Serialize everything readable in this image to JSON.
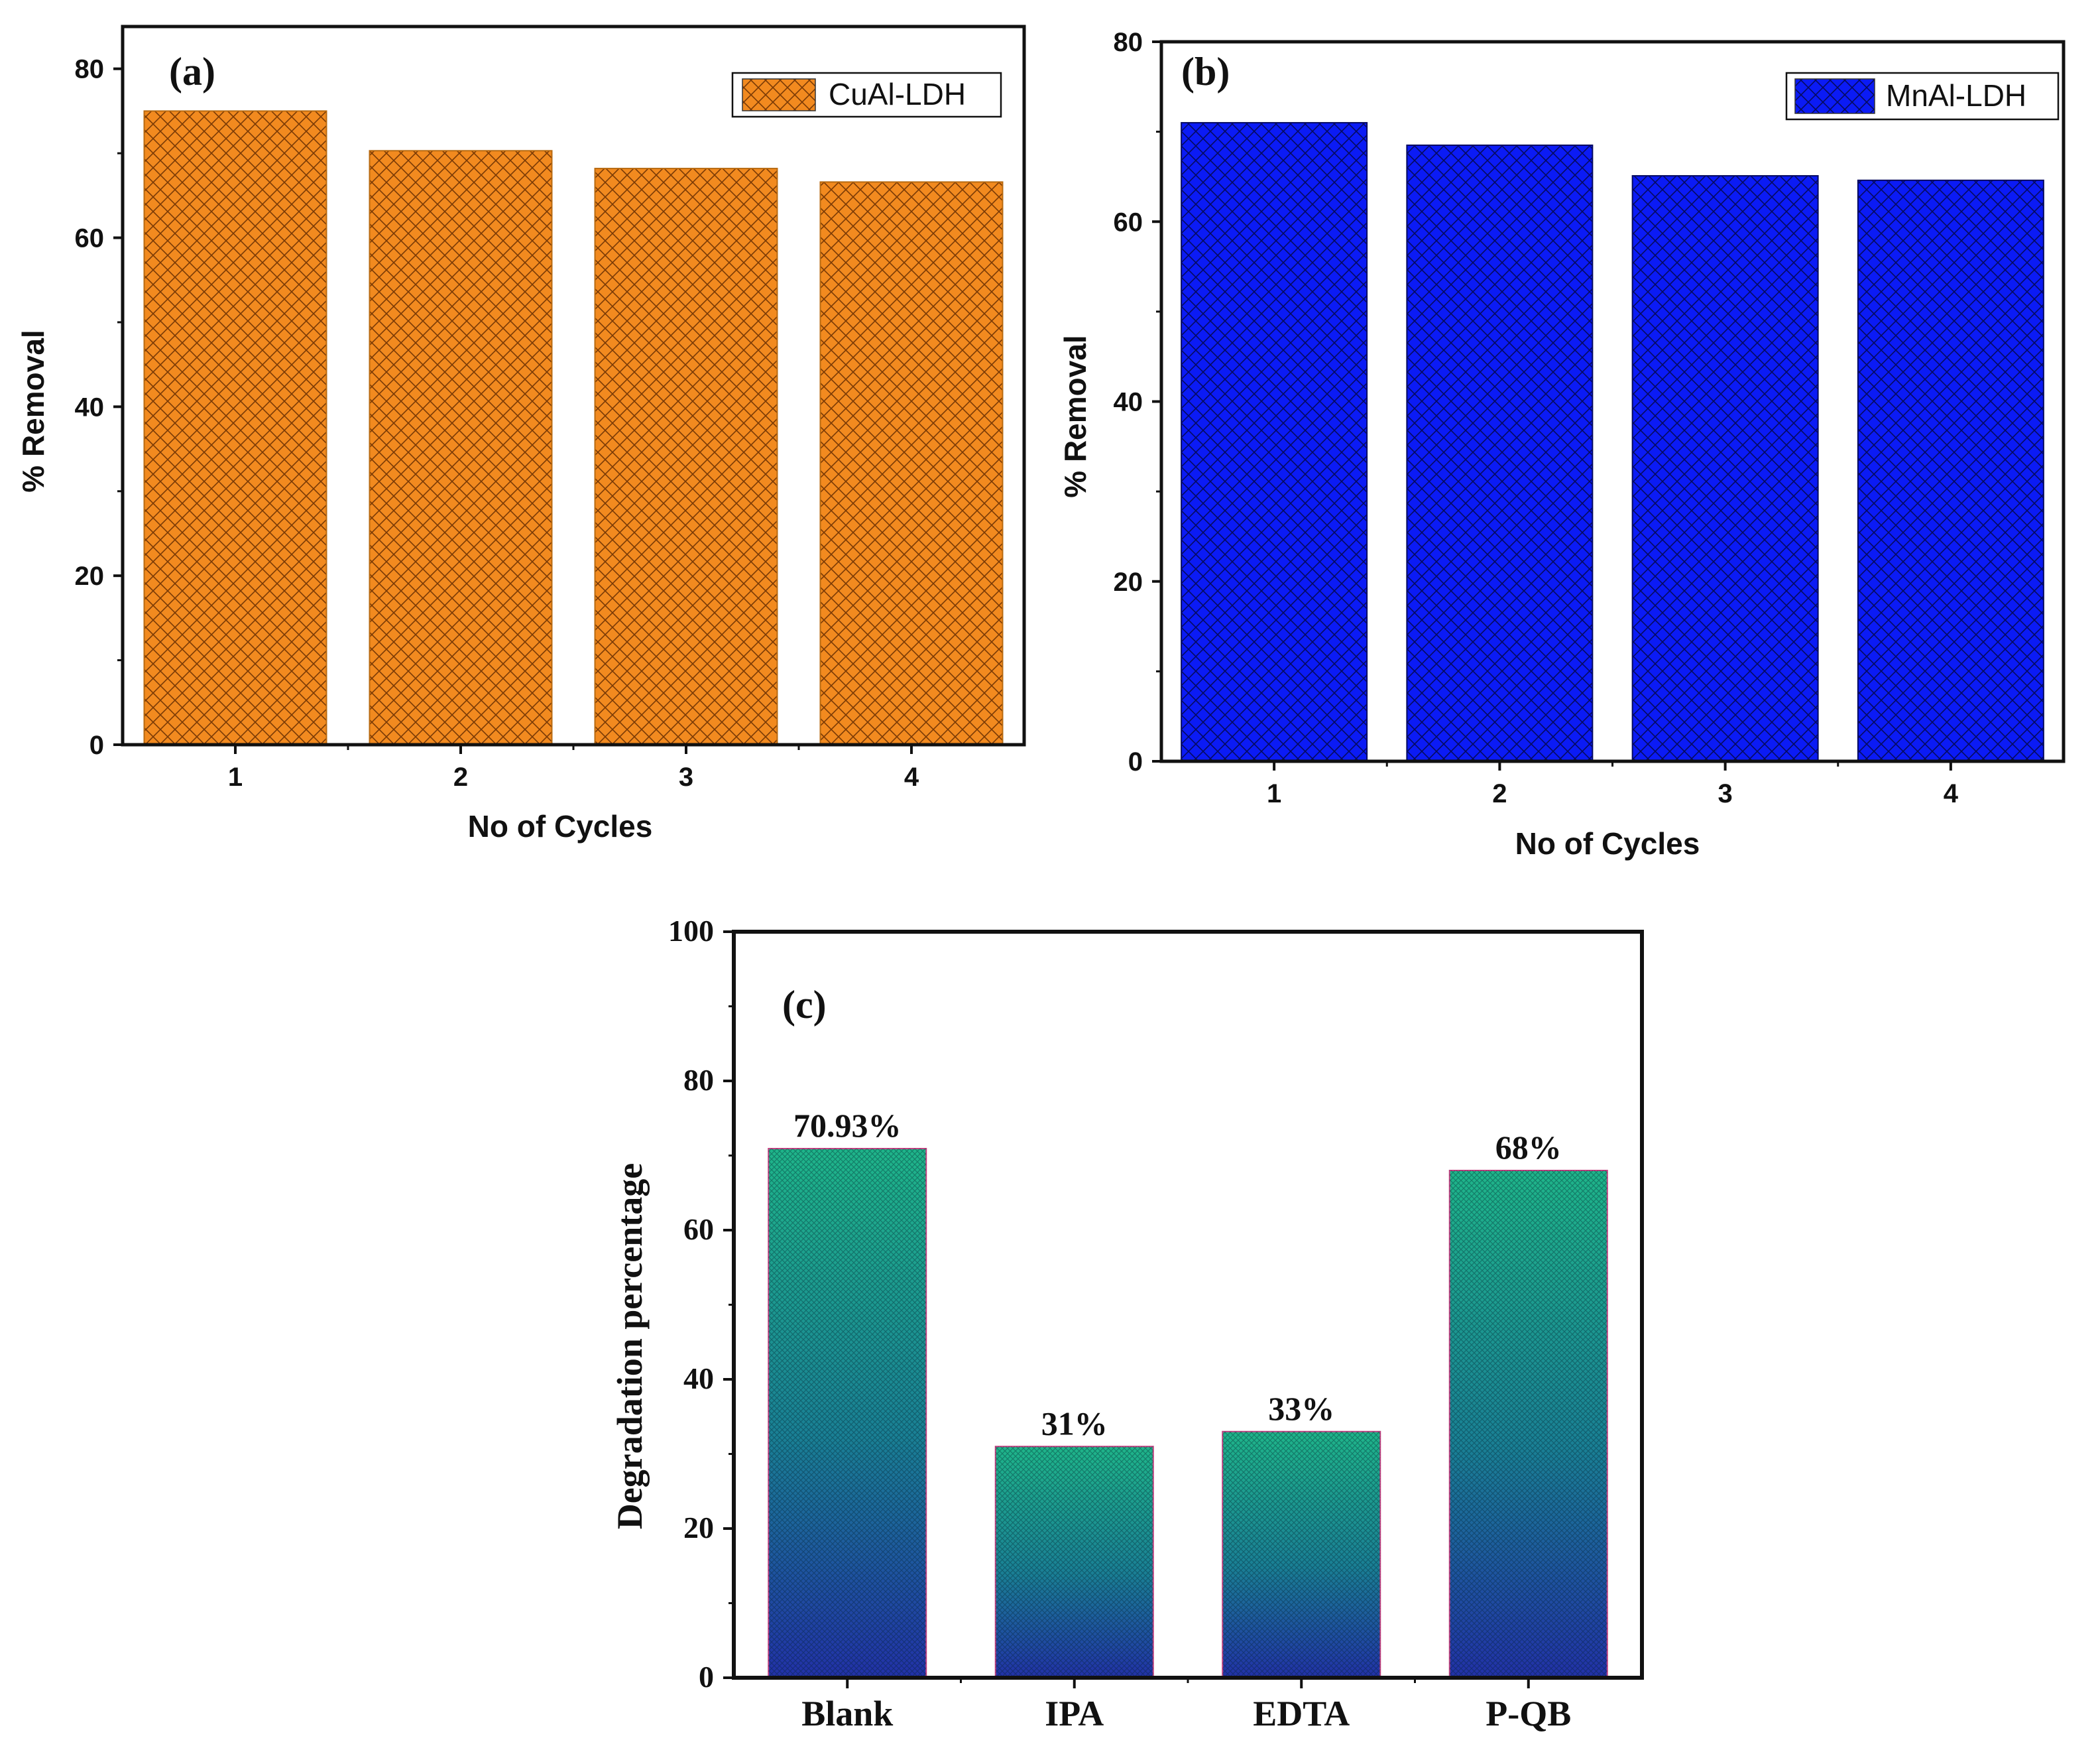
{
  "chart_data": [
    {
      "id": "a",
      "type": "bar",
      "panel_label": "(a)",
      "categories": [
        "1",
        "2",
        "3",
        "4"
      ],
      "series": [
        {
          "name": "CuAl-LDH",
          "values": [
            75,
            70.3,
            68.2,
            66.6
          ]
        }
      ],
      "xlabel": "No of Cycles",
      "ylabel": "% Removal",
      "ylim": [
        0,
        85
      ],
      "yticks": [
        0,
        20,
        40,
        60,
        80
      ],
      "legend": "top-right",
      "color": "#f28a1f",
      "pattern": "crosshatch"
    },
    {
      "id": "b",
      "type": "bar",
      "panel_label": "(b)",
      "categories": [
        "1",
        "2",
        "3",
        "4"
      ],
      "series": [
        {
          "name": "MnAl-LDH",
          "values": [
            71,
            68.5,
            65.1,
            64.6
          ]
        }
      ],
      "xlabel": "No of Cycles",
      "ylabel": "% Removal",
      "ylim": [
        0,
        80
      ],
      "yticks": [
        0,
        20,
        40,
        60,
        80
      ],
      "legend": "top-right",
      "color": "#0b1bf5",
      "pattern": "crosshatch"
    },
    {
      "id": "c",
      "type": "bar",
      "panel_label": "(c)",
      "categories": [
        "Blank",
        "IPA",
        "EDTA",
        "P-QB"
      ],
      "series": [
        {
          "name": "Degradation",
          "values": [
            70.93,
            31,
            33,
            68
          ]
        }
      ],
      "data_labels": [
        "70.93%",
        "31%",
        "33%",
        "68%"
      ],
      "xlabel": "",
      "ylabel": "Degradation percentage",
      "ylim": [
        0,
        100
      ],
      "yticks": [
        0,
        20,
        40,
        60,
        80,
        100
      ],
      "legend": "none",
      "color_top": "#1fb58a",
      "color_bottom": "#2231a8",
      "pattern": "gradient"
    }
  ]
}
